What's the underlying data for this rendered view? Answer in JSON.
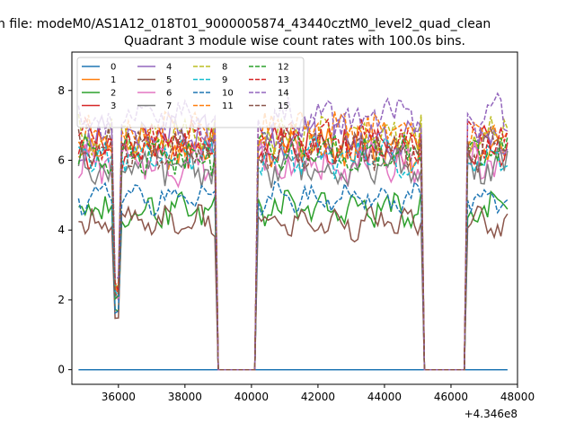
{
  "chart_data": {
    "type": "line",
    "suptitle": "n file: modeM0/AS1A12_018T01_9000005874_43440cztM0_level2_quad_clean",
    "title": "Quadrant 3 module wise count rates with 100.0s bins.",
    "xlabel": "",
    "ylabel": "",
    "x_offset_label": "+4.346e8",
    "xlim": [
      34600,
      48000
    ],
    "ylim": [
      -0.42,
      9.1
    ],
    "xticks": [
      36000,
      38000,
      40000,
      42000,
      44000,
      46000,
      48000
    ],
    "xtick_labels": [
      "36000",
      "38000",
      "40000",
      "42000",
      "44000",
      "46000",
      "48000"
    ],
    "yticks": [
      0,
      2,
      4,
      6,
      8
    ],
    "ytick_labels": [
      "0",
      "2",
      "4",
      "6",
      "8"
    ],
    "x_range": [
      34800,
      47700
    ],
    "bin_width": 100,
    "segments": [
      [
        34800,
        38900
      ],
      [
        40200,
        45100
      ],
      [
        46500,
        47700
      ]
    ],
    "legend": {
      "placement": "top-left",
      "columns": 4
    },
    "series": [
      {
        "name": "0",
        "color": "#1f77b4",
        "dash": "solid",
        "level": 0.0,
        "amp": 0.0
      },
      {
        "name": "1",
        "color": "#ff7f0e",
        "dash": "solid",
        "level": 6.3,
        "amp": 0.45
      },
      {
        "name": "2",
        "color": "#2ca02c",
        "dash": "solid",
        "level": 4.6,
        "amp": 0.35
      },
      {
        "name": "3",
        "color": "#d62728",
        "dash": "solid",
        "level": 6.4,
        "amp": 0.45
      },
      {
        "name": "4",
        "color": "#9467bd",
        "dash": "solid",
        "level": 6.6,
        "amp": 0.5
      },
      {
        "name": "5",
        "color": "#8c564b",
        "dash": "solid",
        "level": 4.2,
        "amp": 0.3
      },
      {
        "name": "6",
        "color": "#e377c2",
        "dash": "solid",
        "level": 5.9,
        "amp": 0.45
      },
      {
        "name": "7",
        "color": "#7f7f7f",
        "dash": "solid",
        "level": 5.8,
        "amp": 0.4
      },
      {
        "name": "8",
        "color": "#bcbd22",
        "dash": "dashed",
        "level": 6.7,
        "amp": 0.45
      },
      {
        "name": "9",
        "color": "#17becf",
        "dash": "dashed",
        "level": 6.1,
        "amp": 0.4
      },
      {
        "name": "10",
        "color": "#1f77b4",
        "dash": "dashed",
        "level": 4.9,
        "amp": 0.25
      },
      {
        "name": "11",
        "color": "#ff7f0e",
        "dash": "dashed",
        "level": 6.8,
        "amp": 0.45
      },
      {
        "name": "12",
        "color": "#2ca02c",
        "dash": "dashed",
        "level": 6.2,
        "amp": 0.4
      },
      {
        "name": "13",
        "color": "#d62728",
        "dash": "dashed",
        "level": 6.6,
        "amp": 0.45
      },
      {
        "name": "14",
        "color": "#9467bd",
        "dash": "dashed",
        "level": 7.2,
        "amp": 0.5
      },
      {
        "name": "15",
        "color": "#8c564b",
        "dash": "dashed",
        "level": 6.3,
        "amp": 0.45
      }
    ]
  }
}
